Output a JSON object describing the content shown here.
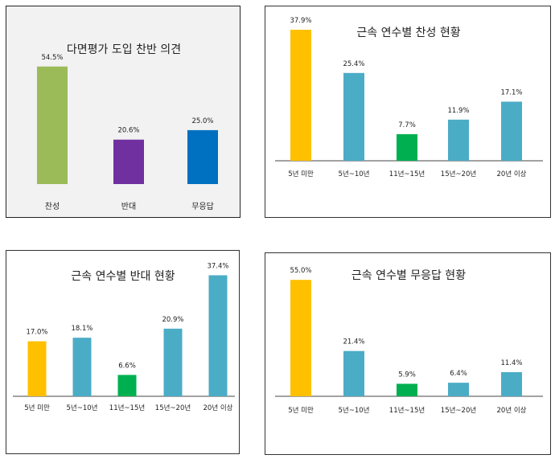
{
  "chart_data": [
    {
      "type": "bar",
      "title": "다면평가 도입 찬반 의견",
      "categories": [
        "찬성",
        "반대",
        "무응답"
      ],
      "values": [
        54.5,
        20.6,
        25.0
      ],
      "value_labels": [
        "54.5%",
        "20.6%",
        "25.0%"
      ],
      "colors": [
        "#9BBB59",
        "#7030A0",
        "#0070C0"
      ],
      "ylim": [
        0,
        60
      ],
      "grid": false
    },
    {
      "type": "bar",
      "title": "근속 연수별 찬성 현황",
      "categories": [
        "5년 미만",
        "5년~10년",
        "11년~15년",
        "15년~20년",
        "20년 이상"
      ],
      "values": [
        37.9,
        25.4,
        7.7,
        11.9,
        17.1
      ],
      "value_labels": [
        "37.9%",
        "25.4%",
        "7.7%",
        "11.9%",
        "17.1%"
      ],
      "colors": [
        "#FFC000",
        "#4BACC6",
        "#00B050",
        "#4BACC6",
        "#4BACC6"
      ],
      "ylim": [
        0,
        40
      ],
      "grid": false
    },
    {
      "type": "bar",
      "title": "근속 연수별 반대 현황",
      "categories": [
        "5년 미만",
        "5년~10년",
        "11년~15년",
        "15년~20년",
        "20년 이상"
      ],
      "values": [
        17.0,
        18.1,
        6.6,
        20.9,
        37.4
      ],
      "value_labels": [
        "17.0%",
        "18.1%",
        "6.6%",
        "20.9%",
        "37.4%"
      ],
      "colors": [
        "#FFC000",
        "#4BACC6",
        "#00B050",
        "#4BACC6",
        "#4BACC6"
      ],
      "ylim": [
        0,
        40
      ],
      "grid": false
    },
    {
      "type": "bar",
      "title": "근속 연수별 무응답 현황",
      "categories": [
        "5년 미만",
        "5년~10년",
        "11년~15년",
        "15년~20년",
        "20년 이상"
      ],
      "values": [
        55.0,
        21.4,
        5.9,
        6.4,
        11.4
      ],
      "value_labels": [
        "55.0%",
        "21.4%",
        "5.9%",
        "6.4%",
        "11.4%"
      ],
      "colors": [
        "#FFC000",
        "#4BACC6",
        "#00B050",
        "#4BACC6",
        "#4BACC6"
      ],
      "ylim": [
        0,
        60
      ],
      "grid": false
    }
  ]
}
